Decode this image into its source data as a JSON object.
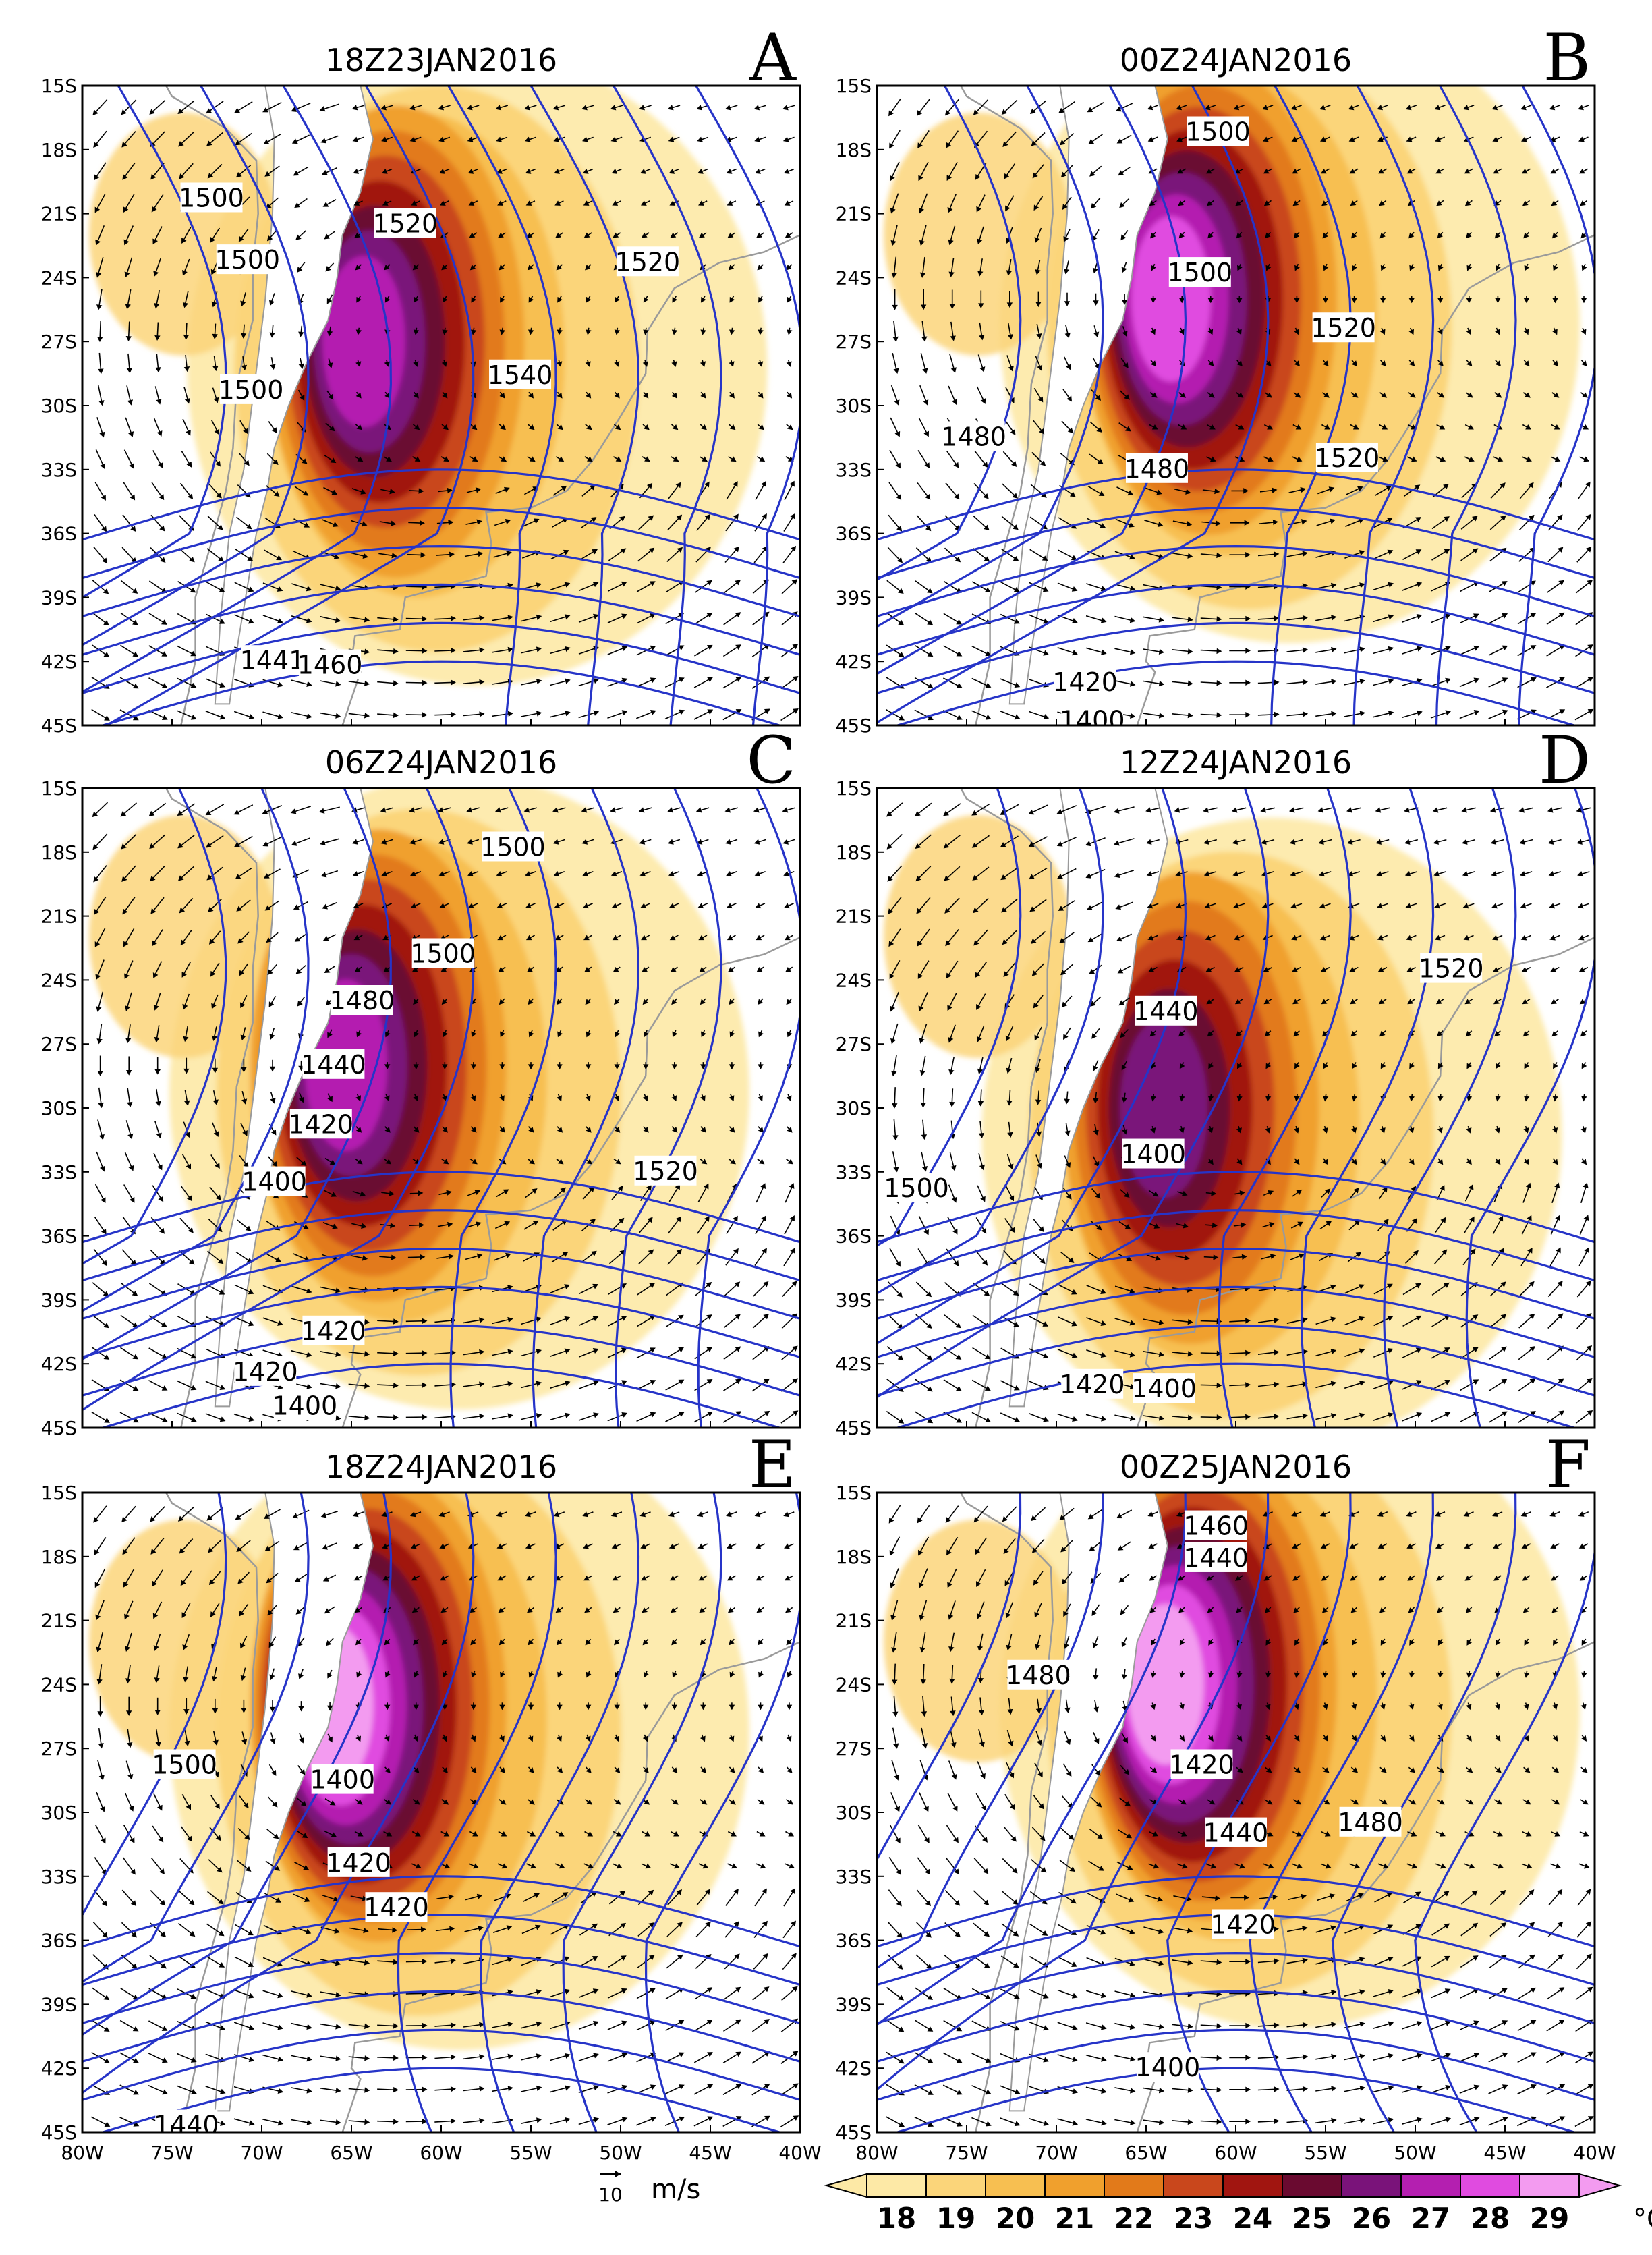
{
  "chart_data": {
    "type": "contour-map",
    "panels": [
      {
        "letter": "A",
        "title": "18Z23JAN2016",
        "contour_labels": [
          {
            "text": "1500",
            "lon": -72.8,
            "lat": -20.3
          },
          {
            "text": "1520",
            "lon": -62.0,
            "lat": -21.5
          },
          {
            "text": "1500",
            "lon": -70.8,
            "lat": -23.2
          },
          {
            "text": "1520",
            "lon": -48.5,
            "lat": -23.3
          },
          {
            "text": "1540",
            "lon": -55.6,
            "lat": -28.6
          },
          {
            "text": "1500",
            "lon": -70.6,
            "lat": -29.3
          },
          {
            "text": "1441",
            "lon": -69.4,
            "lat": -42.0
          },
          {
            "text": "1460",
            "lon": -66.2,
            "lat": -42.2
          }
        ],
        "warm_core": {
          "lon": -62.5,
          "lat": -27.0,
          "max_class": 27
        }
      },
      {
        "letter": "B",
        "title": "00Z24JAN2016",
        "contour_labels": [
          {
            "text": "1500",
            "lon": -61.0,
            "lat": -17.2
          },
          {
            "text": "1500",
            "lon": -62.0,
            "lat": -23.8
          },
          {
            "text": "1520",
            "lon": -54.0,
            "lat": -26.4
          },
          {
            "text": "1480",
            "lon": -74.6,
            "lat": -31.5
          },
          {
            "text": "1520",
            "lon": -53.8,
            "lat": -32.5
          },
          {
            "text": "1480",
            "lon": -64.4,
            "lat": -33.0
          },
          {
            "text": "1420",
            "lon": -68.4,
            "lat": -43.0
          },
          {
            "text": "1400",
            "lon": -68.0,
            "lat": -44.8
          }
        ],
        "warm_core": {
          "lon": -61.5,
          "lat": -25.0,
          "max_class": 28
        }
      },
      {
        "letter": "C",
        "title": "06Z24JAN2016",
        "contour_labels": [
          {
            "text": "1500",
            "lon": -56.0,
            "lat": -17.8
          },
          {
            "text": "1500",
            "lon": -59.9,
            "lat": -22.8
          },
          {
            "text": "1480",
            "lon": -64.4,
            "lat": -25.0
          },
          {
            "text": "1440",
            "lon": -66.0,
            "lat": -28.0
          },
          {
            "text": "1420",
            "lon": -66.7,
            "lat": -30.8
          },
          {
            "text": "1400",
            "lon": -69.3,
            "lat": -33.5
          },
          {
            "text": "1420",
            "lon": -66.0,
            "lat": -40.5
          },
          {
            "text": "1420",
            "lon": -69.8,
            "lat": -42.4
          },
          {
            "text": "1400",
            "lon": -67.6,
            "lat": -44.0
          },
          {
            "text": "1520",
            "lon": -47.5,
            "lat": -33.0
          }
        ],
        "warm_core": {
          "lon": -63.5,
          "lat": -28.0,
          "max_class": 27
        }
      },
      {
        "letter": "D",
        "title": "12Z24JAN2016",
        "contour_labels": [
          {
            "text": "1520",
            "lon": -48.0,
            "lat": -23.5
          },
          {
            "text": "1440",
            "lon": -63.9,
            "lat": -25.5
          },
          {
            "text": "1400",
            "lon": -64.6,
            "lat": -32.2
          },
          {
            "text": "1500",
            "lon": -77.8,
            "lat": -33.8
          },
          {
            "text": "1420",
            "lon": -68.0,
            "lat": -43.0
          },
          {
            "text": "1400",
            "lon": -64.0,
            "lat": -43.2
          }
        ],
        "warm_core": {
          "lon": -62.5,
          "lat": -30.0,
          "max_class": 26
        }
      },
      {
        "letter": "E",
        "title": "18Z24JAN2016",
        "contour_labels": [
          {
            "text": "1500",
            "lon": -74.3,
            "lat": -27.8
          },
          {
            "text": "1400",
            "lon": -65.5,
            "lat": -28.5
          },
          {
            "text": "1420",
            "lon": -64.6,
            "lat": -32.4
          },
          {
            "text": "1420",
            "lon": -62.5,
            "lat": -34.5
          },
          {
            "text": "1440",
            "lon": -74.2,
            "lat": -44.7
          }
        ],
        "warm_core": {
          "lon": -63.5,
          "lat": -25.0,
          "max_class": 29
        }
      },
      {
        "letter": "F",
        "title": "00Z25JAN2016",
        "contour_labels": [
          {
            "text": "1460",
            "lon": -61.1,
            "lat": -16.6
          },
          {
            "text": "1440",
            "lon": -61.1,
            "lat": -18.1
          },
          {
            "text": "1480",
            "lon": -71.0,
            "lat": -23.6
          },
          {
            "text": "1420",
            "lon": -61.9,
            "lat": -27.8
          },
          {
            "text": "1440",
            "lon": -60.0,
            "lat": -31.0
          },
          {
            "text": "1480",
            "lon": -52.5,
            "lat": -30.5
          },
          {
            "text": "1420",
            "lon": -59.6,
            "lat": -35.3
          },
          {
            "text": "1400",
            "lon": -63.8,
            "lat": -42.0
          }
        ],
        "warm_core": {
          "lon": -61.5,
          "lat": -24.0,
          "max_class": 29
        }
      }
    ],
    "lat_ticks": [
      "15S",
      "18S",
      "21S",
      "24S",
      "27S",
      "30S",
      "33S",
      "36S",
      "39S",
      "42S",
      "45S"
    ],
    "lon_ticks": [
      "80W",
      "75W",
      "70W",
      "65W",
      "60W",
      "55W",
      "50W",
      "45W",
      "40W"
    ],
    "lon_range": [
      -80,
      -40
    ],
    "lat_range": [
      -45,
      -15
    ],
    "colorbar": {
      "values": [
        "18",
        "19",
        "20",
        "21",
        "22",
        "23",
        "24",
        "25",
        "26",
        "27",
        "28",
        "29"
      ],
      "colors": [
        "#fde9a6",
        "#fbd57a",
        "#f7bf51",
        "#f0a02d",
        "#e27a1a",
        "#c9471c",
        "#a11510",
        "#6a0a30",
        "#7a137a",
        "#b41fb0",
        "#e04be0",
        "#f39bf0"
      ],
      "unit": "°C"
    },
    "vector_reference": {
      "value": "10",
      "unit": "m/s",
      "label": "⃗10"
    }
  },
  "colors": {
    "contour": "#2634c8",
    "coast": "#9a9a9a",
    "arrow": "#000000"
  }
}
